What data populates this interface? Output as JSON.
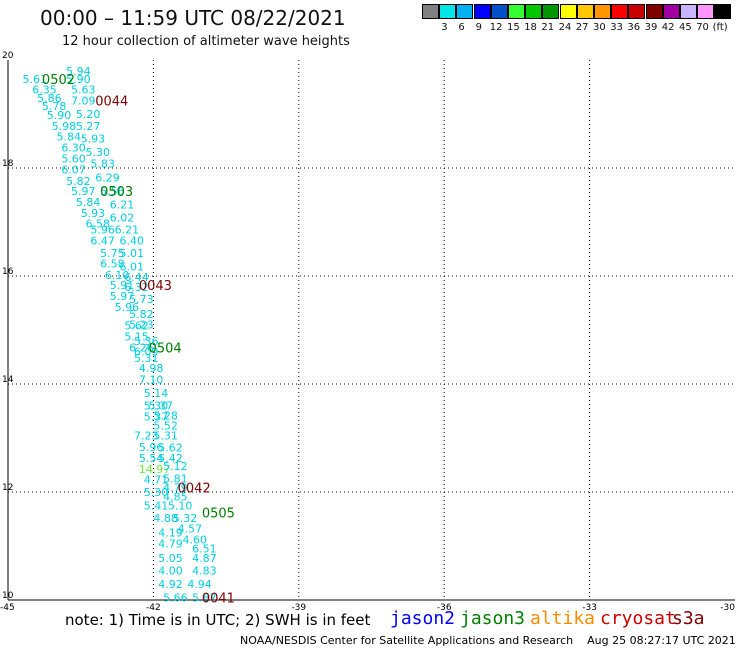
{
  "header": {
    "title": "00:00 – 11:59 UTC 08/22/2021",
    "subtitle": "12 hour collection of altimeter wave heights"
  },
  "color_scale": {
    "unit": "(ft)",
    "bins": [
      {
        "label": "",
        "color": "#808080"
      },
      {
        "label": "3",
        "color": "#00e5e5"
      },
      {
        "label": "6",
        "color": "#00b0f0"
      },
      {
        "label": "9",
        "color": "#0000ff"
      },
      {
        "label": "12",
        "color": "#0050c8"
      },
      {
        "label": "15",
        "color": "#33ff33"
      },
      {
        "label": "18",
        "color": "#00c800"
      },
      {
        "label": "21",
        "color": "#009600"
      },
      {
        "label": "24",
        "color": "#ffff00"
      },
      {
        "label": "27",
        "color": "#ffc800"
      },
      {
        "label": "30",
        "color": "#ff9600"
      },
      {
        "label": "33",
        "color": "#ff0000"
      },
      {
        "label": "36",
        "color": "#c80000"
      },
      {
        "label": "39",
        "color": "#800000"
      },
      {
        "label": "42",
        "color": "#a000a0"
      },
      {
        "label": "45",
        "color": "#c8b4ff"
      },
      {
        "label": "70",
        "color": "#ff96ff"
      },
      {
        "label": "",
        "color": "#000000"
      }
    ]
  },
  "footer": {
    "note": "note: 1) Time is in UTC; 2) SWH is in feet",
    "satellites": [
      {
        "name": "jason2",
        "color": "#0000ff"
      },
      {
        "name": "jason3",
        "color": "#008000"
      },
      {
        "name": "altika",
        "color": "#ff8c00"
      },
      {
        "name": "cryosat",
        "color": "#cc0000"
      },
      {
        "name": "s3a",
        "color": "#800000"
      }
    ],
    "credit": "NOAA/NESDIS Center for Satellite Applications and Research",
    "generated": "Aug 25 08:27:17 UTC 2021"
  },
  "chart_data": {
    "type": "scatter",
    "title": "00:00 – 11:59 UTC 08/22/2021",
    "subtitle": "12 hour collection of altimeter wave heights",
    "xlabel": "",
    "ylabel": "",
    "xlim": [
      -45,
      -30
    ],
    "ylim": [
      10,
      20
    ],
    "x_ticks": [
      "-45",
      "-42",
      "-39",
      "-36",
      "-33",
      "-30"
    ],
    "y_ticks": [
      "10",
      "12",
      "14",
      "16",
      "18",
      "20"
    ],
    "grid": true,
    "point_color": "#00d0e0",
    "highlight_color": "#66ee33",
    "points": [
      {
        "x": -43.8,
        "y": 19.8,
        "v": "5.94"
      },
      {
        "x": -44.7,
        "y": 19.65,
        "v": "5.61"
      },
      {
        "x": -43.8,
        "y": 19.65,
        "v": "5.90"
      },
      {
        "x": -44.5,
        "y": 19.45,
        "v": "6.35"
      },
      {
        "x": -43.7,
        "y": 19.45,
        "v": "5.63"
      },
      {
        "x": -44.4,
        "y": 19.3,
        "v": "5.86"
      },
      {
        "x": -43.7,
        "y": 19.25,
        "v": "7.09"
      },
      {
        "x": -44.3,
        "y": 19.15,
        "v": "5.78"
      },
      {
        "x": -44.2,
        "y": 18.98,
        "v": "5.90"
      },
      {
        "x": -43.6,
        "y": 19.0,
        "v": "5.20"
      },
      {
        "x": -44.1,
        "y": 18.78,
        "v": "5.98"
      },
      {
        "x": -43.6,
        "y": 18.78,
        "v": "5.27"
      },
      {
        "x": -44.0,
        "y": 18.58,
        "v": "5.84"
      },
      {
        "x": -43.5,
        "y": 18.55,
        "v": "5.93"
      },
      {
        "x": -43.9,
        "y": 18.38,
        "v": "6.30"
      },
      {
        "x": -43.4,
        "y": 18.3,
        "v": "5.30"
      },
      {
        "x": -43.9,
        "y": 18.18,
        "v": "5.60"
      },
      {
        "x": -43.3,
        "y": 18.08,
        "v": "5.83"
      },
      {
        "x": -43.9,
        "y": 17.97,
        "v": "6.07"
      },
      {
        "x": -43.2,
        "y": 17.82,
        "v": "6.29"
      },
      {
        "x": -43.8,
        "y": 17.76,
        "v": "5.82"
      },
      {
        "x": -43.7,
        "y": 17.57,
        "v": "5.97"
      },
      {
        "x": -43.1,
        "y": 17.57,
        "v": "5.56"
      },
      {
        "x": -43.6,
        "y": 17.37,
        "v": "5.84"
      },
      {
        "x": -42.9,
        "y": 17.32,
        "v": "6.21"
      },
      {
        "x": -43.5,
        "y": 17.17,
        "v": "5.93"
      },
      {
        "x": -42.9,
        "y": 17.08,
        "v": "6.02"
      },
      {
        "x": -43.4,
        "y": 16.97,
        "v": "6.58"
      },
      {
        "x": -42.8,
        "y": 16.86,
        "v": "6.21"
      },
      {
        "x": -43.3,
        "y": 16.86,
        "v": "5.96"
      },
      {
        "x": -43.3,
        "y": 16.66,
        "v": "6.47"
      },
      {
        "x": -42.7,
        "y": 16.66,
        "v": "6.40"
      },
      {
        "x": -43.1,
        "y": 16.43,
        "v": "5.75"
      },
      {
        "x": -42.7,
        "y": 16.43,
        "v": "5.01"
      },
      {
        "x": -43.1,
        "y": 16.23,
        "v": "6.58"
      },
      {
        "x": -42.7,
        "y": 16.18,
        "v": "6.01"
      },
      {
        "x": -43.0,
        "y": 16.02,
        "v": "6.10"
      },
      {
        "x": -42.6,
        "y": 15.98,
        "v": "6.44"
      },
      {
        "x": -42.9,
        "y": 15.83,
        "v": "5.91"
      },
      {
        "x": -42.6,
        "y": 15.8,
        "v": "6.32"
      },
      {
        "x": -42.9,
        "y": 15.63,
        "v": "5.97"
      },
      {
        "x": -42.5,
        "y": 15.57,
        "v": "5.73"
      },
      {
        "x": -42.8,
        "y": 15.43,
        "v": "5.96"
      },
      {
        "x": -42.5,
        "y": 15.3,
        "v": "5.82"
      },
      {
        "x": -42.6,
        "y": 15.08,
        "v": "5.62"
      },
      {
        "x": -42.5,
        "y": 15.1,
        "v": "5.23"
      },
      {
        "x": -42.6,
        "y": 14.88,
        "v": "5.15"
      },
      {
        "x": -42.4,
        "y": 14.8,
        "v": "5.36"
      },
      {
        "x": -42.5,
        "y": 14.68,
        "v": "6.26"
      },
      {
        "x": -42.4,
        "y": 14.6,
        "v": "6.09"
      },
      {
        "x": -42.4,
        "y": 14.48,
        "v": "5.31"
      },
      {
        "x": -42.3,
        "y": 14.3,
        "v": "4.98"
      },
      {
        "x": -42.3,
        "y": 14.08,
        "v": "7.10"
      },
      {
        "x": -42.2,
        "y": 13.83,
        "v": "5.14"
      },
      {
        "x": -42.2,
        "y": 13.6,
        "v": "5.30"
      },
      {
        "x": -42.1,
        "y": 13.6,
        "v": "5.37"
      },
      {
        "x": -42.0,
        "y": 13.42,
        "v": "5.28"
      },
      {
        "x": -42.2,
        "y": 13.4,
        "v": "5.37"
      },
      {
        "x": -42.0,
        "y": 13.23,
        "v": "5.52"
      },
      {
        "x": -42.4,
        "y": 13.05,
        "v": "7.23"
      },
      {
        "x": -42.0,
        "y": 13.05,
        "v": "5.31"
      },
      {
        "x": -42.3,
        "y": 12.83,
        "v": "5.96"
      },
      {
        "x": -41.9,
        "y": 12.82,
        "v": "5.62"
      },
      {
        "x": -42.3,
        "y": 12.63,
        "v": "5.54"
      },
      {
        "x": -41.9,
        "y": 12.63,
        "v": "5.42"
      },
      {
        "x": -42.3,
        "y": 12.43,
        "v": "14.97",
        "hl": true
      },
      {
        "x": -41.8,
        "y": 12.48,
        "v": "5.12"
      },
      {
        "x": -42.2,
        "y": 12.23,
        "v": "4.71"
      },
      {
        "x": -41.8,
        "y": 12.25,
        "v": "5.81"
      },
      {
        "x": -41.8,
        "y": 12.08,
        "v": "4.79"
      },
      {
        "x": -42.2,
        "y": 12.0,
        "v": "5.30"
      },
      {
        "x": -41.8,
        "y": 11.92,
        "v": "4.85"
      },
      {
        "x": -42.2,
        "y": 11.75,
        "v": "5.41"
      },
      {
        "x": -41.7,
        "y": 11.75,
        "v": "5.10"
      },
      {
        "x": -42.0,
        "y": 11.52,
        "v": "4.88"
      },
      {
        "x": -41.6,
        "y": 11.52,
        "v": "5.32"
      },
      {
        "x": -41.5,
        "y": 11.32,
        "v": "4.57"
      },
      {
        "x": -41.9,
        "y": 11.25,
        "v": "4.19"
      },
      {
        "x": -41.4,
        "y": 11.12,
        "v": "4.60"
      },
      {
        "x": -41.9,
        "y": 11.05,
        "v": "4.79"
      },
      {
        "x": -41.2,
        "y": 10.95,
        "v": "6.51"
      },
      {
        "x": -41.9,
        "y": 10.78,
        "v": "5.05"
      },
      {
        "x": -41.2,
        "y": 10.78,
        "v": "4.87"
      },
      {
        "x": -41.9,
        "y": 10.55,
        "v": "4.00"
      },
      {
        "x": -41.2,
        "y": 10.55,
        "v": "4.83"
      },
      {
        "x": -41.9,
        "y": 10.3,
        "v": "4.92"
      },
      {
        "x": -41.3,
        "y": 10.3,
        "v": "4.94"
      },
      {
        "x": -41.8,
        "y": 10.05,
        "v": "5.66"
      },
      {
        "x": -41.2,
        "y": 10.05,
        "v": "5.87"
      }
    ],
    "passes": [
      {
        "x": -44.3,
        "y": 19.65,
        "label": "0502",
        "color": "#008000"
      },
      {
        "x": -43.2,
        "y": 19.25,
        "label": "0044",
        "color": "#800000"
      },
      {
        "x": -43.1,
        "y": 17.57,
        "label": "0503",
        "color": "#008000"
      },
      {
        "x": -42.3,
        "y": 15.83,
        "label": "0043",
        "color": "#800000"
      },
      {
        "x": -42.1,
        "y": 14.68,
        "label": "0504",
        "color": "#008000"
      },
      {
        "x": -41.5,
        "y": 12.08,
        "label": "0042",
        "color": "#800000"
      },
      {
        "x": -41.0,
        "y": 11.62,
        "label": "0505",
        "color": "#008000"
      },
      {
        "x": -41.0,
        "y": 10.05,
        "label": "0041",
        "color": "#800000"
      }
    ]
  }
}
